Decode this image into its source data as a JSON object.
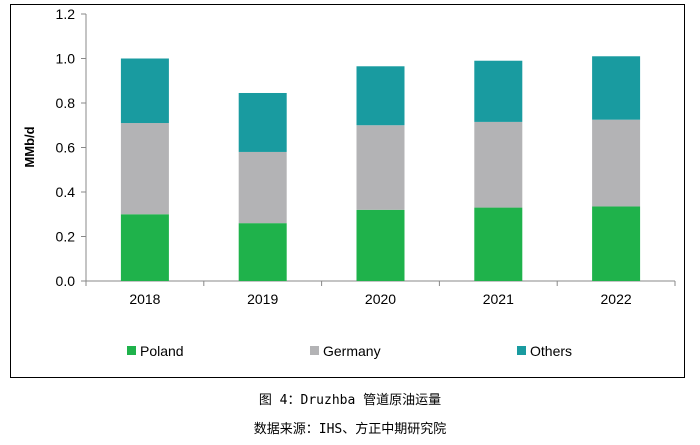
{
  "chart_data": {
    "type": "bar",
    "stacked": true,
    "categories": [
      "2018",
      "2019",
      "2020",
      "2021",
      "2022"
    ],
    "series": [
      {
        "name": "Poland",
        "color": "#1fb24b",
        "values": [
          0.3,
          0.26,
          0.32,
          0.33,
          0.335
        ]
      },
      {
        "name": "Germany",
        "color": "#b3b3b5",
        "values": [
          0.41,
          0.32,
          0.38,
          0.385,
          0.39
        ]
      },
      {
        "name": "Others",
        "color": "#199ba0",
        "values": [
          0.29,
          0.265,
          0.265,
          0.275,
          0.285
        ]
      }
    ],
    "ylabel": "MMb/d",
    "ylim": [
      0,
      1.2
    ],
    "yticks": [
      "0.0",
      "0.2",
      "0.4",
      "0.6",
      "0.8",
      "1.0",
      "1.2"
    ],
    "grid": false,
    "legend_position": "bottom"
  },
  "caption": {
    "figure_title": "图 4：Druzhba 管道原油运量",
    "source": "数据来源：IHS、方正中期研究院"
  }
}
